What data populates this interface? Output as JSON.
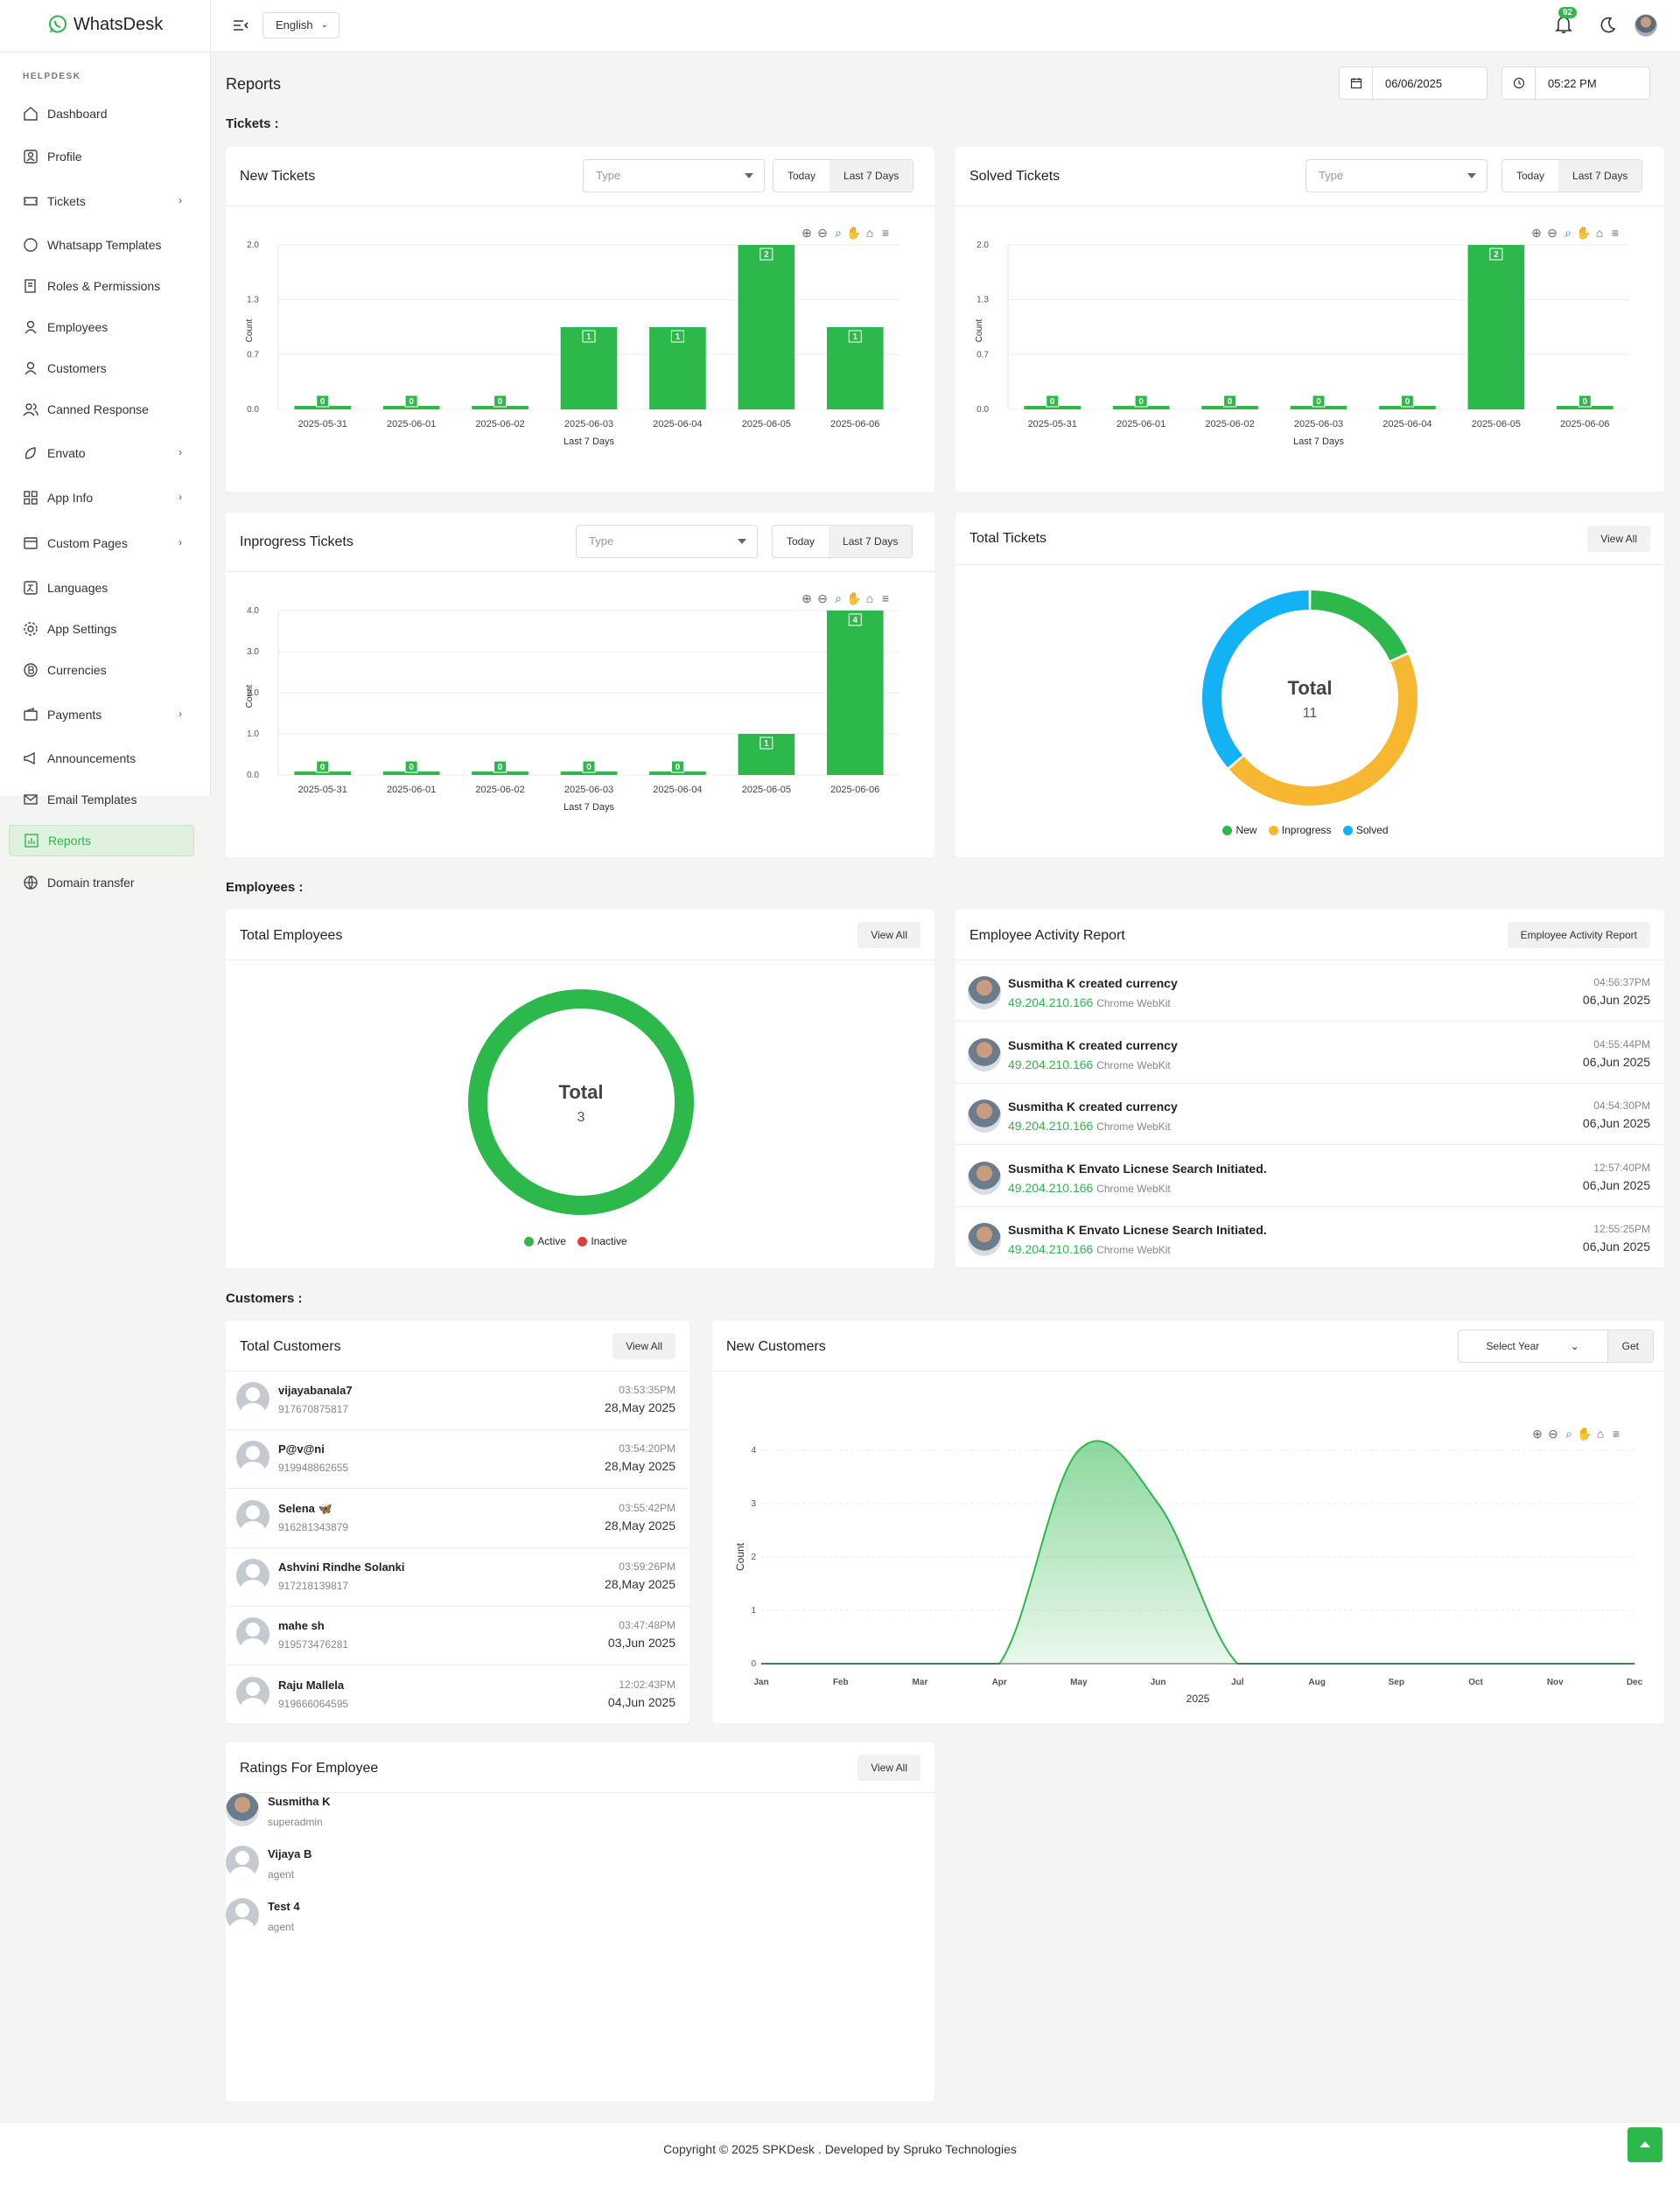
{
  "app": {
    "name": "WhatsDesk",
    "language": "English",
    "notif_count": "92"
  },
  "colors": {
    "green": "#2db84b",
    "amber": "#f7b731",
    "blue": "#12b2f5",
    "red": "#e23b3b"
  },
  "sidebar": {
    "heading": "HELPDESK",
    "items": [
      {
        "label": "Dashboard",
        "icon": "home-icon"
      },
      {
        "label": "Profile",
        "icon": "profile-icon"
      },
      {
        "label": "Tickets",
        "icon": "ticket-icon",
        "arrow": true
      },
      {
        "label": "Whatsapp Templates",
        "icon": "whatsapp-icon"
      },
      {
        "label": "Roles & Permissions",
        "icon": "roles-icon"
      },
      {
        "label": "Employees",
        "icon": "user-icon"
      },
      {
        "label": "Customers",
        "icon": "user-icon"
      },
      {
        "label": "Canned Response",
        "icon": "users-icon"
      },
      {
        "label": "Envato",
        "icon": "leaf-icon",
        "arrow": true
      },
      {
        "label": "App Info",
        "icon": "grid-icon",
        "arrow": true
      },
      {
        "label": "Custom Pages",
        "icon": "pages-icon",
        "arrow": true
      },
      {
        "label": "Languages",
        "icon": "language-icon"
      },
      {
        "label": "App Settings",
        "icon": "gear-icon"
      },
      {
        "label": "Currencies",
        "icon": "currency-icon"
      },
      {
        "label": "Payments",
        "icon": "wallet-icon",
        "arrow": true
      },
      {
        "label": "Announcements",
        "icon": "megaphone-icon"
      },
      {
        "label": "Email Templates",
        "icon": "mail-icon"
      },
      {
        "label": "Reports",
        "icon": "chart-icon",
        "active": true
      },
      {
        "label": "Domain transfer",
        "icon": "globe-icon"
      }
    ]
  },
  "header": {
    "title": "Reports",
    "date": "06/06/2025",
    "time": "05:22 PM"
  },
  "sections": {
    "tickets": "Tickets :",
    "employees": "Employees :",
    "customers": "Customers :"
  },
  "common": {
    "type_placeholder": "Type",
    "today": "Today",
    "last7": "Last 7 Days",
    "view_all": "View All",
    "count": "Count",
    "tool_icons": [
      "zoom-in-icon",
      "zoom-out-icon",
      "zoom-select-icon",
      "pan-hand-icon",
      "reset-home-icon",
      "menu-icon"
    ]
  },
  "new_tickets": {
    "title": "New Tickets"
  },
  "solved_tickets": {
    "title": "Solved Tickets"
  },
  "inprogress_tickets": {
    "title": "Inprogress Tickets"
  },
  "total_tickets": {
    "title": "Total Tickets",
    "center_label": "Total",
    "center_value": "11",
    "legend": [
      "New",
      "Inprogress",
      "Solved"
    ]
  },
  "total_employees": {
    "title": "Total Employees",
    "center_label": "Total",
    "center_value": "3",
    "legend": [
      "Active",
      "Inactive"
    ]
  },
  "activity": {
    "title": "Employee Activity Report",
    "button": "Employee Activity Report",
    "rows": [
      {
        "name": "Susmitha K",
        "action": "created currency",
        "ip": "49.204.210.166",
        "browser": "Chrome WebKit",
        "time": "04:56:37PM",
        "date": "06,Jun 2025"
      },
      {
        "name": "Susmitha K",
        "action": "created currency",
        "ip": "49.204.210.166",
        "browser": "Chrome WebKit",
        "time": "04:55:44PM",
        "date": "06,Jun 2025"
      },
      {
        "name": "Susmitha K",
        "action": "created currency",
        "ip": "49.204.210.166",
        "browser": "Chrome WebKit",
        "time": "04:54:30PM",
        "date": "06,Jun 2025"
      },
      {
        "name": "Susmitha K",
        "action": "Envato Licnese Search Initiated.",
        "ip": "49.204.210.166",
        "browser": "Chrome WebKit",
        "time": "12:57:40PM",
        "date": "06,Jun 2025"
      },
      {
        "name": "Susmitha K",
        "action": "Envato Licnese Search Initiated.",
        "ip": "49.204.210.166",
        "browser": "Chrome WebKit",
        "time": "12:55:25PM",
        "date": "06,Jun 2025"
      }
    ]
  },
  "customers": {
    "title": "Total Customers",
    "rows": [
      {
        "name": "vijayabanala7",
        "phone": "917670875817",
        "time": "03:53:35PM",
        "date": "28,May 2025"
      },
      {
        "name": "P@v@ni",
        "phone": "919948862655",
        "time": "03:54:20PM",
        "date": "28,May 2025"
      },
      {
        "name": "Selena 🦋",
        "phone": "916281343879",
        "time": "03:55:42PM",
        "date": "28,May 2025"
      },
      {
        "name": "Ashvini Rindhe Solanki",
        "phone": "917218139817",
        "time": "03:59:26PM",
        "date": "28,May 2025"
      },
      {
        "name": "mahe sh",
        "phone": "919573476281",
        "time": "03:47:48PM",
        "date": "03,Jun 2025"
      },
      {
        "name": "Raju Mallela",
        "phone": "919666064595",
        "time": "12:02:43PM",
        "date": "04,Jun 2025"
      }
    ]
  },
  "new_customers": {
    "title": "New Customers",
    "select_year": "Select Year",
    "get": "Get"
  },
  "ratings": {
    "title": "Ratings For Employee",
    "rows": [
      {
        "name": "Susmitha K",
        "role": "superadmin"
      },
      {
        "name": "Vijaya B",
        "role": "agent"
      },
      {
        "name": "Test 4",
        "role": "agent"
      }
    ]
  },
  "footer": {
    "text": "Copyright © 2025 SPKDesk . Developed by Spruko Technologies"
  },
  "chart_data": [
    {
      "id": "new_tickets",
      "type": "bar",
      "title": "New Tickets",
      "categories": [
        "2025-05-31",
        "2025-06-01",
        "2025-06-02",
        "2025-06-03",
        "2025-06-04",
        "2025-06-05",
        "2025-06-06"
      ],
      "values": [
        0,
        0,
        0,
        1,
        1,
        2,
        1
      ],
      "xlabel": "Last 7 Days",
      "ylabel": "Count",
      "yticks": [
        "0.0",
        "0.7",
        "1.3",
        "2.0"
      ],
      "ylim": [
        0,
        2
      ]
    },
    {
      "id": "solved_tickets",
      "type": "bar",
      "title": "Solved Tickets",
      "categories": [
        "2025-05-31",
        "2025-06-01",
        "2025-06-02",
        "2025-06-03",
        "2025-06-04",
        "2025-06-05",
        "2025-06-06"
      ],
      "values": [
        0,
        0,
        0,
        0,
        0,
        2,
        0
      ],
      "xlabel": "Last 7 Days",
      "ylabel": "Count",
      "yticks": [
        "0.0",
        "0.7",
        "1.3",
        "2.0"
      ],
      "ylim": [
        0,
        2
      ]
    },
    {
      "id": "inprogress_tickets",
      "type": "bar",
      "title": "Inprogress Tickets",
      "categories": [
        "2025-05-31",
        "2025-06-01",
        "2025-06-02",
        "2025-06-03",
        "2025-06-04",
        "2025-06-05",
        "2025-06-06"
      ],
      "values": [
        0,
        0,
        0,
        0,
        0,
        1,
        4
      ],
      "xlabel": "Last 7 Days",
      "ylabel": "Count",
      "yticks": [
        "0.0",
        "1.0",
        "2.0",
        "3.0",
        "4.0"
      ],
      "ylim": [
        0,
        4
      ]
    },
    {
      "id": "total_tickets",
      "type": "pie",
      "title": "Total Tickets",
      "categories": [
        "New",
        "Inprogress",
        "Solved"
      ],
      "values": [
        2,
        5,
        4
      ]
    },
    {
      "id": "total_employees",
      "type": "pie",
      "title": "Total Employees",
      "categories": [
        "Active",
        "Inactive"
      ],
      "values": [
        3,
        0
      ]
    },
    {
      "id": "new_customers",
      "type": "area",
      "title": "New Customers",
      "categories": [
        "Jan",
        "Feb",
        "Mar",
        "Apr",
        "May",
        "Jun",
        "Jul",
        "Aug",
        "Sep",
        "Oct",
        "Nov",
        "Dec"
      ],
      "values": [
        0,
        0,
        0,
        0,
        4,
        3,
        0,
        0,
        0,
        0,
        0,
        0
      ],
      "xlabel": "2025",
      "ylabel": "Count",
      "yticks": [
        "0",
        "1",
        "2",
        "3",
        "4"
      ],
      "ylim": [
        0,
        4
      ]
    }
  ]
}
